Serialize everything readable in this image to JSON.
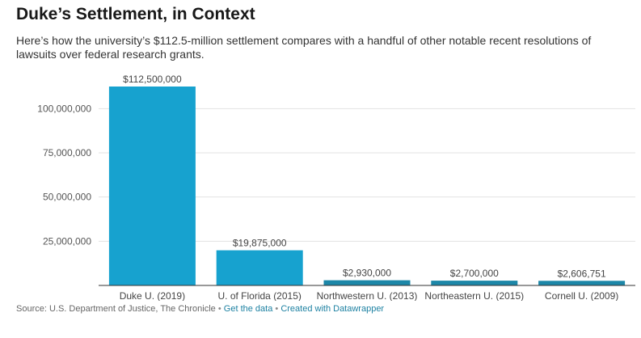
{
  "title": "Duke’s Settlement, in Context",
  "subtitle": "Here’s how the university’s $112.5-million settlement compares with a handful of other notable recent resolutions of lawsuits over federal research grants.",
  "footer": {
    "source": "Source: U.S. Department of Justice, The Chronicle",
    "sep1": "•",
    "get_data": "Get the data",
    "sep2": "•",
    "created_with": "Created with Datawrapper"
  },
  "colors": {
    "bar": "#17a2cf",
    "bar_dark": "#1c87a8",
    "link": "#1d81a2"
  },
  "chart_data": {
    "type": "bar",
    "categories": [
      "Duke U. (2019)",
      "U. of Florida (2015)",
      "Northwestern U. (2013)",
      "Northeastern U. (2015)",
      "Cornell U. (2009)"
    ],
    "values": [
      112500000,
      19875000,
      2930000,
      2700000,
      2606751
    ],
    "data_labels": [
      "$112,500,000",
      "$19,875,000",
      "$2,930,000",
      "$2,700,000",
      "$2,606,751"
    ],
    "yticks": [
      25000000,
      50000000,
      75000000,
      100000000
    ],
    "ytick_labels": [
      "25,000,000",
      "50,000,000",
      "75,000,000",
      "100,000,000"
    ],
    "ylim": [
      0,
      112500000
    ],
    "grid": true
  }
}
